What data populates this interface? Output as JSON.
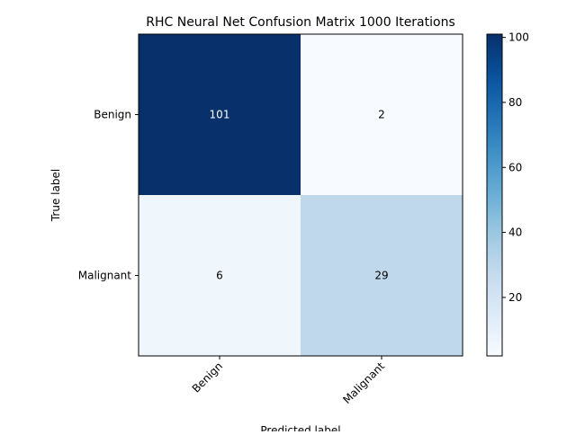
{
  "chart_data": {
    "type": "heatmap",
    "title": "RHC Neural Net Confusion Matrix 1000 Iterations",
    "xlabel": "Predicted label",
    "ylabel": "True label",
    "x_categories": [
      "Benign",
      "Malignant"
    ],
    "y_categories": [
      "Benign",
      "Malignant"
    ],
    "values": [
      [
        101,
        2
      ],
      [
        6,
        29
      ]
    ],
    "colormap": "Blues",
    "color_range": [
      2,
      101
    ],
    "colorbar_ticks": [
      20,
      40,
      60,
      80,
      100
    ],
    "grid": false
  }
}
